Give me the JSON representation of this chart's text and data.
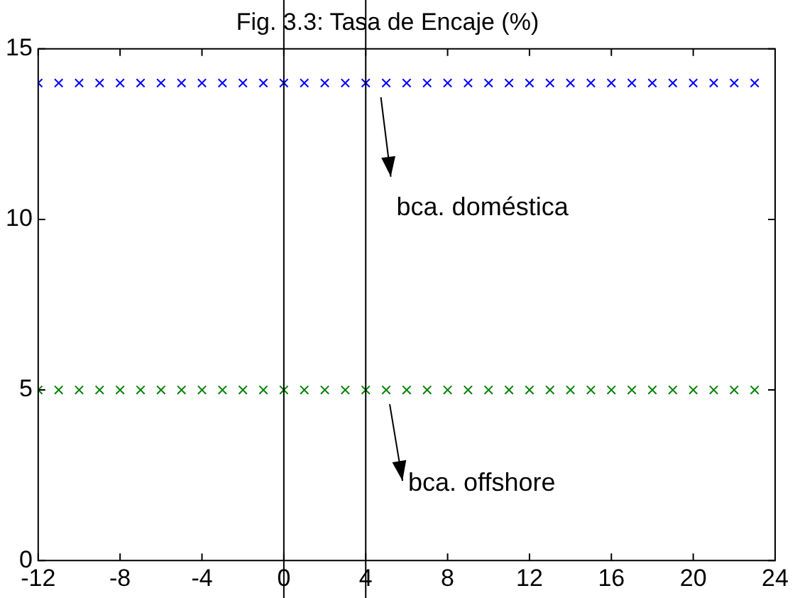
{
  "chart_data": {
    "type": "scatter",
    "title": "Fig. 3.3: Tasa de Encaje (%)",
    "x": [
      -12,
      -11,
      -10,
      -9,
      -8,
      -7,
      -6,
      -5,
      -4,
      -3,
      -2,
      -1,
      0,
      1,
      2,
      3,
      4,
      5,
      6,
      7,
      8,
      9,
      10,
      11,
      12,
      13,
      14,
      15,
      16,
      17,
      18,
      19,
      20,
      21,
      22,
      23
    ],
    "series": [
      {
        "color": "#0000ff",
        "values": [
          14,
          14,
          14,
          14,
          14,
          14,
          14,
          14,
          14,
          14,
          14,
          14,
          14,
          14,
          14,
          14,
          14,
          14,
          14,
          14,
          14,
          14,
          14,
          14,
          14,
          14,
          14,
          14,
          14,
          14,
          14,
          14,
          14,
          14,
          14,
          14
        ]
      },
      {
        "color": "#008000",
        "values": [
          5,
          5,
          5,
          5,
          5,
          5,
          5,
          5,
          5,
          5,
          5,
          5,
          5,
          5,
          5,
          5,
          5,
          5,
          5,
          5,
          5,
          5,
          5,
          5,
          5,
          5,
          5,
          5,
          5,
          5,
          5,
          5,
          5,
          5,
          5,
          5
        ]
      }
    ],
    "xlim": [
      -12,
      24
    ],
    "xticks": [
      -12,
      -8,
      -4,
      0,
      4,
      8,
      12,
      16,
      20,
      24
    ],
    "ylim": [
      0,
      15
    ],
    "yticks": [
      0,
      5,
      10,
      15
    ],
    "grid": false,
    "legend": false,
    "marker": "cross",
    "ref_lines": [
      {
        "axis": "x",
        "value": 0,
        "color": "#000000"
      },
      {
        "axis": "x",
        "value": 4,
        "color": "#000000"
      }
    ],
    "annotations": [
      "bca. doméstica",
      "bca. offshore"
    ]
  }
}
